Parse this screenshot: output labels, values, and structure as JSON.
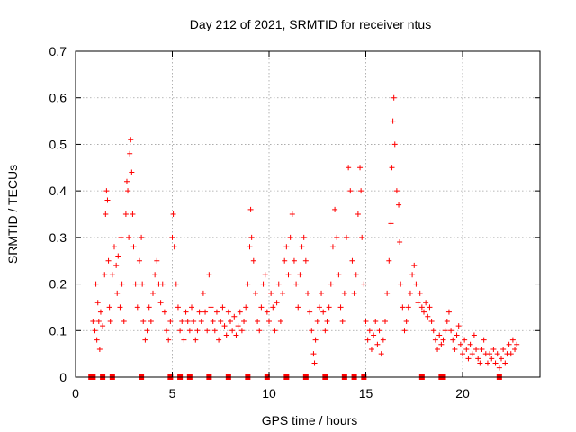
{
  "chart_data": {
    "type": "scatter",
    "title": "Day 212 of 2021, SRMTID for receiver ntus",
    "xlabel": "GPS time / hours",
    "ylabel": "SRMTID / TECUs",
    "xlim": [
      0,
      24
    ],
    "ylim": [
      0,
      0.7
    ],
    "xticks": [
      0,
      5,
      10,
      15,
      20
    ],
    "xtick_labels": [
      "0",
      "5",
      "10",
      "15",
      "20"
    ],
    "yticks": [
      0,
      0.1,
      0.2,
      0.3,
      0.4,
      0.5,
      0.6,
      0.7
    ],
    "ytick_labels": [
      "0",
      "0.1",
      "0.2",
      "0.3",
      "0.4",
      "0.5",
      "0.6",
      "0.7"
    ],
    "grid": true,
    "marker": "plus",
    "color": "#ff0000",
    "gap_markers_x": [
      0.8,
      0.9,
      1.4,
      1.9,
      3.4,
      4.9,
      5.4,
      5.9,
      6.9,
      7.9,
      8.9,
      9.9,
      10.9,
      11.9,
      12.9,
      13.9,
      14.4,
      14.9,
      17.9,
      18.9,
      19.0,
      21.9
    ],
    "series": [
      {
        "name": "SRMTID",
        "points": [
          [
            0.9,
            0.12
          ],
          [
            1.0,
            0.1
          ],
          [
            1.05,
            0.2
          ],
          [
            1.1,
            0.08
          ],
          [
            1.15,
            0.16
          ],
          [
            1.2,
            0.12
          ],
          [
            1.25,
            0.06
          ],
          [
            1.3,
            0.14
          ],
          [
            1.4,
            0.11
          ],
          [
            1.5,
            0.22
          ],
          [
            1.55,
            0.35
          ],
          [
            1.6,
            0.4
          ],
          [
            1.65,
            0.38
          ],
          [
            1.7,
            0.25
          ],
          [
            1.75,
            0.15
          ],
          [
            1.8,
            0.12
          ],
          [
            1.9,
            0.22
          ],
          [
            2.0,
            0.28
          ],
          [
            2.1,
            0.24
          ],
          [
            2.15,
            0.18
          ],
          [
            2.2,
            0.26
          ],
          [
            2.3,
            0.15
          ],
          [
            2.35,
            0.3
          ],
          [
            2.4,
            0.2
          ],
          [
            2.5,
            0.12
          ],
          [
            2.6,
            0.35
          ],
          [
            2.65,
            0.42
          ],
          [
            2.7,
            0.4
          ],
          [
            2.75,
            0.3
          ],
          [
            2.8,
            0.48
          ],
          [
            2.85,
            0.51
          ],
          [
            2.9,
            0.44
          ],
          [
            2.95,
            0.35
          ],
          [
            3.0,
            0.28
          ],
          [
            3.1,
            0.2
          ],
          [
            3.2,
            0.15
          ],
          [
            3.3,
            0.25
          ],
          [
            3.4,
            0.3
          ],
          [
            3.45,
            0.2
          ],
          [
            3.5,
            0.12
          ],
          [
            3.6,
            0.08
          ],
          [
            3.7,
            0.1
          ],
          [
            3.8,
            0.15
          ],
          [
            3.9,
            0.12
          ],
          [
            4.0,
            0.18
          ],
          [
            4.1,
            0.22
          ],
          [
            4.2,
            0.25
          ],
          [
            4.3,
            0.2
          ],
          [
            4.4,
            0.16
          ],
          [
            4.5,
            0.2
          ],
          [
            4.6,
            0.14
          ],
          [
            4.7,
            0.1
          ],
          [
            4.8,
            0.08
          ],
          [
            4.9,
            0.12
          ],
          [
            5.0,
            0.3
          ],
          [
            5.05,
            0.35
          ],
          [
            5.1,
            0.28
          ],
          [
            5.2,
            0.2
          ],
          [
            5.3,
            0.15
          ],
          [
            5.4,
            0.1
          ],
          [
            5.5,
            0.12
          ],
          [
            5.6,
            0.08
          ],
          [
            5.7,
            0.14
          ],
          [
            5.8,
            0.12
          ],
          [
            5.9,
            0.1
          ],
          [
            6.0,
            0.15
          ],
          [
            6.1,
            0.12
          ],
          [
            6.2,
            0.08
          ],
          [
            6.3,
            0.1
          ],
          [
            6.4,
            0.14
          ],
          [
            6.5,
            0.12
          ],
          [
            6.6,
            0.18
          ],
          [
            6.7,
            0.14
          ],
          [
            6.8,
            0.1
          ],
          [
            6.9,
            0.22
          ],
          [
            7.0,
            0.15
          ],
          [
            7.1,
            0.12
          ],
          [
            7.2,
            0.1
          ],
          [
            7.3,
            0.14
          ],
          [
            7.4,
            0.08
          ],
          [
            7.5,
            0.12
          ],
          [
            7.6,
            0.15
          ],
          [
            7.7,
            0.11
          ],
          [
            7.8,
            0.09
          ],
          [
            7.9,
            0.14
          ],
          [
            8.0,
            0.12
          ],
          [
            8.1,
            0.1
          ],
          [
            8.2,
            0.13
          ],
          [
            8.3,
            0.09
          ],
          [
            8.4,
            0.11
          ],
          [
            8.5,
            0.14
          ],
          [
            8.6,
            0.1
          ],
          [
            8.7,
            0.12
          ],
          [
            8.8,
            0.15
          ],
          [
            8.9,
            0.2
          ],
          [
            9.0,
            0.28
          ],
          [
            9.05,
            0.36
          ],
          [
            9.1,
            0.3
          ],
          [
            9.2,
            0.25
          ],
          [
            9.3,
            0.18
          ],
          [
            9.4,
            0.12
          ],
          [
            9.5,
            0.1
          ],
          [
            9.6,
            0.15
          ],
          [
            9.7,
            0.2
          ],
          [
            9.8,
            0.22
          ],
          [
            9.9,
            0.14
          ],
          [
            10.0,
            0.12
          ],
          [
            10.1,
            0.18
          ],
          [
            10.2,
            0.15
          ],
          [
            10.3,
            0.1
          ],
          [
            10.4,
            0.16
          ],
          [
            10.5,
            0.2
          ],
          [
            10.6,
            0.12
          ],
          [
            10.7,
            0.18
          ],
          [
            10.8,
            0.25
          ],
          [
            10.9,
            0.28
          ],
          [
            11.0,
            0.22
          ],
          [
            11.1,
            0.3
          ],
          [
            11.2,
            0.35
          ],
          [
            11.3,
            0.25
          ],
          [
            11.4,
            0.2
          ],
          [
            11.5,
            0.15
          ],
          [
            11.6,
            0.22
          ],
          [
            11.7,
            0.28
          ],
          [
            11.8,
            0.3
          ],
          [
            11.9,
            0.25
          ],
          [
            12.0,
            0.18
          ],
          [
            12.1,
            0.14
          ],
          [
            12.2,
            0.1
          ],
          [
            12.3,
            0.05
          ],
          [
            12.35,
            0.03
          ],
          [
            12.4,
            0.08
          ],
          [
            12.5,
            0.12
          ],
          [
            12.6,
            0.15
          ],
          [
            12.7,
            0.18
          ],
          [
            12.8,
            0.14
          ],
          [
            12.9,
            0.1
          ],
          [
            13.0,
            0.12
          ],
          [
            13.1,
            0.15
          ],
          [
            13.2,
            0.2
          ],
          [
            13.3,
            0.28
          ],
          [
            13.4,
            0.36
          ],
          [
            13.5,
            0.3
          ],
          [
            13.6,
            0.22
          ],
          [
            13.7,
            0.15
          ],
          [
            13.8,
            0.12
          ],
          [
            13.9,
            0.18
          ],
          [
            14.0,
            0.3
          ],
          [
            14.1,
            0.45
          ],
          [
            14.2,
            0.4
          ],
          [
            14.3,
            0.25
          ],
          [
            14.4,
            0.18
          ],
          [
            14.5,
            0.22
          ],
          [
            14.6,
            0.35
          ],
          [
            14.7,
            0.45
          ],
          [
            14.75,
            0.4
          ],
          [
            14.8,
            0.3
          ],
          [
            14.9,
            0.2
          ],
          [
            15.0,
            0.12
          ],
          [
            15.1,
            0.08
          ],
          [
            15.2,
            0.1
          ],
          [
            15.3,
            0.06
          ],
          [
            15.4,
            0.09
          ],
          [
            15.5,
            0.12
          ],
          [
            15.6,
            0.07
          ],
          [
            15.7,
            0.1
          ],
          [
            15.8,
            0.05
          ],
          [
            15.9,
            0.08
          ],
          [
            16.0,
            0.12
          ],
          [
            16.1,
            0.18
          ],
          [
            16.2,
            0.25
          ],
          [
            16.3,
            0.33
          ],
          [
            16.35,
            0.45
          ],
          [
            16.4,
            0.55
          ],
          [
            16.45,
            0.6
          ],
          [
            16.5,
            0.5
          ],
          [
            16.6,
            0.4
          ],
          [
            16.7,
            0.37
          ],
          [
            16.75,
            0.29
          ],
          [
            16.8,
            0.2
          ],
          [
            16.9,
            0.15
          ],
          [
            17.0,
            0.1
          ],
          [
            17.1,
            0.12
          ],
          [
            17.2,
            0.15
          ],
          [
            17.3,
            0.18
          ],
          [
            17.4,
            0.22
          ],
          [
            17.5,
            0.24
          ],
          [
            17.6,
            0.2
          ],
          [
            17.7,
            0.16
          ],
          [
            17.8,
            0.18
          ],
          [
            17.9,
            0.15
          ],
          [
            18.0,
            0.14
          ],
          [
            18.1,
            0.16
          ],
          [
            18.2,
            0.13
          ],
          [
            18.3,
            0.15
          ],
          [
            18.4,
            0.12
          ],
          [
            18.5,
            0.1
          ],
          [
            18.6,
            0.08
          ],
          [
            18.7,
            0.06
          ],
          [
            18.8,
            0.09
          ],
          [
            18.9,
            0.07
          ],
          [
            19.0,
            0.08
          ],
          [
            19.1,
            0.1
          ],
          [
            19.2,
            0.12
          ],
          [
            19.3,
            0.14
          ],
          [
            19.4,
            0.1
          ],
          [
            19.5,
            0.08
          ],
          [
            19.6,
            0.06
          ],
          [
            19.7,
            0.09
          ],
          [
            19.8,
            0.11
          ],
          [
            19.9,
            0.07
          ],
          [
            20.0,
            0.05
          ],
          [
            20.1,
            0.08
          ],
          [
            20.2,
            0.06
          ],
          [
            20.3,
            0.04
          ],
          [
            20.4,
            0.07
          ],
          [
            20.5,
            0.05
          ],
          [
            20.6,
            0.09
          ],
          [
            20.7,
            0.06
          ],
          [
            20.8,
            0.04
          ],
          [
            20.9,
            0.03
          ],
          [
            21.0,
            0.06
          ],
          [
            21.1,
            0.08
          ],
          [
            21.2,
            0.05
          ],
          [
            21.3,
            0.03
          ],
          [
            21.4,
            0.05
          ],
          [
            21.5,
            0.04
          ],
          [
            21.6,
            0.06
          ],
          [
            21.7,
            0.03
          ],
          [
            21.8,
            0.05
          ],
          [
            21.9,
            0.02
          ],
          [
            22.0,
            0.04
          ],
          [
            22.1,
            0.06
          ],
          [
            22.2,
            0.03
          ],
          [
            22.3,
            0.05
          ],
          [
            22.4,
            0.07
          ],
          [
            22.5,
            0.05
          ],
          [
            22.6,
            0.08
          ],
          [
            22.7,
            0.06
          ],
          [
            22.8,
            0.07
          ]
        ]
      }
    ]
  }
}
